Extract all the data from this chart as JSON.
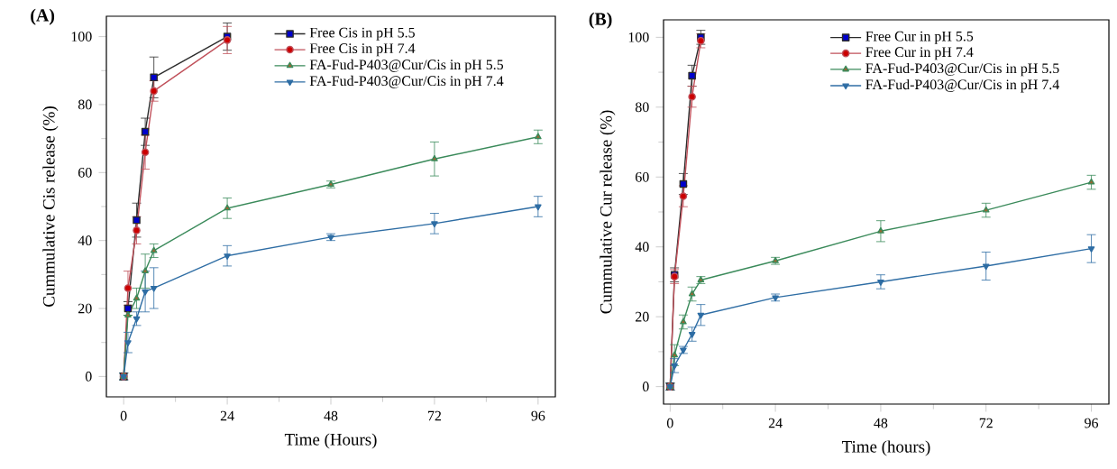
{
  "chart_data": [
    {
      "type": "line",
      "title": "(A)",
      "xlabel": "Time (Hours)",
      "ylabel": "Cummulative Cis release (%)",
      "x": [
        0,
        1,
        3,
        5,
        7,
        24,
        48,
        72,
        96
      ],
      "xlim": [
        -4,
        100
      ],
      "ylim": [
        -6,
        106
      ],
      "xticks": [
        0,
        24,
        48,
        72,
        96
      ],
      "yticks": [
        0,
        20,
        40,
        60,
        80,
        100
      ],
      "legend": "top right",
      "line_style": "solid",
      "series": [
        {
          "name": "Free Cis in pH 5.5",
          "color": "#2b2b2b",
          "marker": "square",
          "x": [
            0,
            1,
            3,
            5,
            7,
            24
          ],
          "values": [
            0,
            20,
            46,
            72,
            88,
            100
          ],
          "errors": [
            1,
            2,
            5,
            4,
            6,
            4
          ]
        },
        {
          "name": "Free Cis in pH 7.4",
          "color": "#c0505a",
          "marker": "circle",
          "x": [
            0,
            1,
            3,
            5,
            7,
            24
          ],
          "values": [
            0,
            26,
            43,
            66,
            84,
            99
          ],
          "errors": [
            1,
            5,
            4,
            5,
            3,
            4
          ]
        },
        {
          "name": "FA-Fud-P403@Cur/Cis in pH 5.5",
          "color": "#3a8a5a",
          "marker": "triangle",
          "values": [
            0,
            18,
            23,
            31,
            37,
            49.5,
            56.5,
            64,
            70.5
          ],
          "errors": [
            1,
            null,
            3,
            5,
            2,
            3,
            1,
            5,
            2
          ]
        },
        {
          "name": "FA-Fud-P403@Cur/Cis in pH 7.4",
          "color": "#2e6da4",
          "marker": "triangle down",
          "values": [
            0,
            10,
            17,
            25,
            26,
            35.5,
            41,
            45,
            50
          ],
          "errors": [
            1,
            3,
            2,
            6,
            6,
            3,
            1,
            3,
            3
          ]
        }
      ]
    },
    {
      "type": "line",
      "title": "(B)",
      "xlabel": "Time (hours)",
      "ylabel": "Cummulative Cur release (%)",
      "x": [
        0,
        1,
        3,
        5,
        7,
        24,
        48,
        72,
        96
      ],
      "xlim": [
        -1.5,
        100
      ],
      "ylim": [
        -5,
        105
      ],
      "xticks": [
        0,
        24,
        48,
        72,
        96
      ],
      "yticks": [
        0,
        20,
        40,
        60,
        80,
        100
      ],
      "legend": "top right",
      "line_style": "solid",
      "series": [
        {
          "name": "Free Cur in pH 5.5",
          "color": "#2b2b2b",
          "marker": "square",
          "x": [
            0,
            1,
            3,
            5,
            7
          ],
          "values": [
            0,
            32,
            58,
            89,
            100
          ],
          "errors": [
            1,
            2,
            3,
            3,
            2
          ]
        },
        {
          "name": "Free Cur in pH 7.4",
          "color": "#c0505a",
          "marker": "circle",
          "x": [
            0,
            1,
            3,
            5,
            7
          ],
          "values": [
            0,
            31.5,
            54.5,
            83,
            99
          ],
          "errors": [
            1,
            2,
            3,
            3,
            2
          ]
        },
        {
          "name": "FA-Fud-P403@Cur/Cis in pH 5.5",
          "color": "#3a8a5a",
          "marker": "triangle",
          "values": [
            0,
            9,
            18.5,
            26.5,
            30.5,
            36,
            44.5,
            50.5,
            58.5
          ],
          "errors": [
            1,
            3,
            2,
            2,
            1,
            1,
            3,
            2,
            2
          ]
        },
        {
          "name": "FA-Fud-P403@Cur/Cis in pH 7.4",
          "color": "#2e6da4",
          "marker": "triangle down",
          "values": [
            0,
            6,
            10.5,
            15,
            20.5,
            25.5,
            30,
            34.5,
            39.5
          ],
          "errors": [
            1,
            2,
            1,
            2,
            3,
            1,
            2,
            4,
            4
          ]
        }
      ]
    }
  ]
}
